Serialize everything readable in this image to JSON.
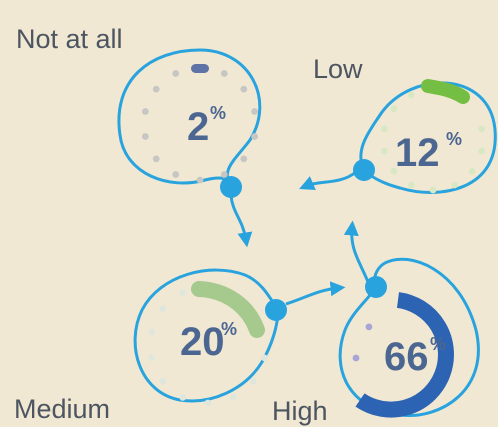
{
  "diagram": {
    "background": "#f1e8d4",
    "outline_color": "#29a3de",
    "levels": [
      {
        "key": "not_at_all",
        "label": "Not at all",
        "value": 2,
        "percent_sign": "%",
        "accent": "#5f74a6",
        "dot_color": "#c7c6c3"
      },
      {
        "key": "low",
        "label": "Low",
        "value": 12,
        "percent_sign": "%",
        "accent": "#74be44",
        "dot_color": "#d7e8c3"
      },
      {
        "key": "medium",
        "label": "Medium",
        "value": 20,
        "percent_sign": "%",
        "accent": "#a6c98e",
        "dot_color": "#dfe7dd"
      },
      {
        "key": "high",
        "label": "High",
        "value": 66,
        "percent_sign": "%",
        "accent": "#2c63b3",
        "dot_color": "#a8a4d6"
      }
    ]
  }
}
